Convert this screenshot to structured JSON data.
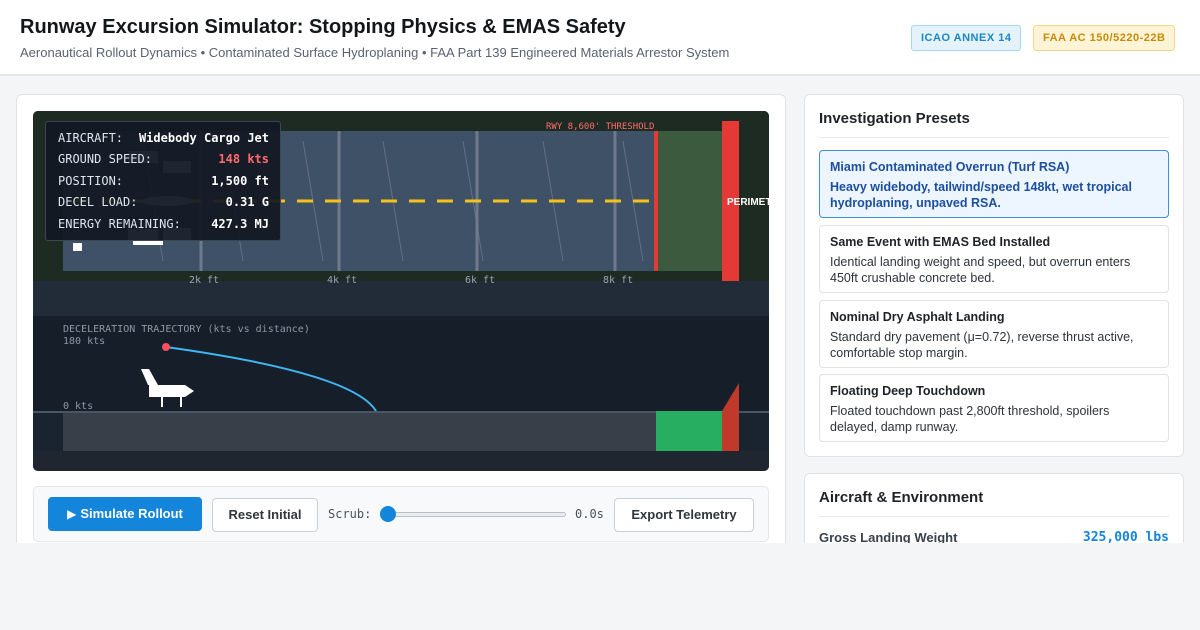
{
  "header": {
    "title": "Runway Excursion Simulator: Stopping Physics & EMAS Safety",
    "subtitle": "Aeronautical Rollout Dynamics • Contaminated Surface Hydroplaning • FAA Part 139 Engineered Materials Arrestor System",
    "badges": [
      "ICAO ANNEX 14",
      "FAA AC 150/5220-22B"
    ]
  },
  "simulation": {
    "threshold_label": "RWY 8,600' THRESHOLD",
    "perimeter_label": "PERIMETER",
    "distance_ticks": [
      "2k ft",
      "4k ft",
      "6k ft",
      "8k ft"
    ],
    "trajectory_title": "DECELERATION TRAJECTORY (kts vs distance)",
    "speed_max_label": "180 kts",
    "speed_min_label": "0 kts",
    "hud": {
      "aircraft": {
        "label": "AIRCRAFT:",
        "value": "Widebody Cargo Jet"
      },
      "ground_speed": {
        "label": "GROUND SPEED:",
        "value": "148 kts"
      },
      "position": {
        "label": "POSITION:",
        "value": "1,500 ft"
      },
      "decel_load": {
        "label": "DECEL LOAD:",
        "value": "0.31 G"
      },
      "energy": {
        "label": "ENERGY REMAINING:",
        "value": "427.3 MJ"
      }
    },
    "colors": {
      "runway": "#3f5166",
      "overrun": "#e53935",
      "trajectory": "#3fb6f0",
      "emas": "#27ae60",
      "centerline": "#f4c21a"
    }
  },
  "controls": {
    "simulate_label": "Simulate Rollout",
    "simulate_icon": "play-icon",
    "reset_label": "Reset Initial",
    "scrub_label": "Scrub:",
    "scrub_value": "0.0s",
    "scrub_position": 0,
    "export_label": "Export Telemetry"
  },
  "presets": {
    "title": "Investigation Presets",
    "items": [
      {
        "title": "Miami Contaminated Overrun (Turf RSA)",
        "desc": "Heavy widebody, tailwind/speed 148kt, wet tropical hydroplaning, unpaved RSA.",
        "active": true
      },
      {
        "title": "Same Event with EMAS Bed Installed",
        "desc": "Identical landing weight and speed, but overrun enters 450ft crushable concrete bed.",
        "active": false
      },
      {
        "title": "Nominal Dry Asphalt Landing",
        "desc": "Standard dry pavement (μ=0.72), reverse thrust active, comfortable stop margin.",
        "active": false
      },
      {
        "title": "Floating Deep Touchdown",
        "desc": "Floated touchdown past 2,800ft threshold, spoilers delayed, damp runway.",
        "active": false
      }
    ]
  },
  "environment": {
    "title": "Aircraft & Environment",
    "rows": [
      {
        "label": "Gross Landing Weight",
        "value": "325,000 lbs"
      }
    ]
  }
}
